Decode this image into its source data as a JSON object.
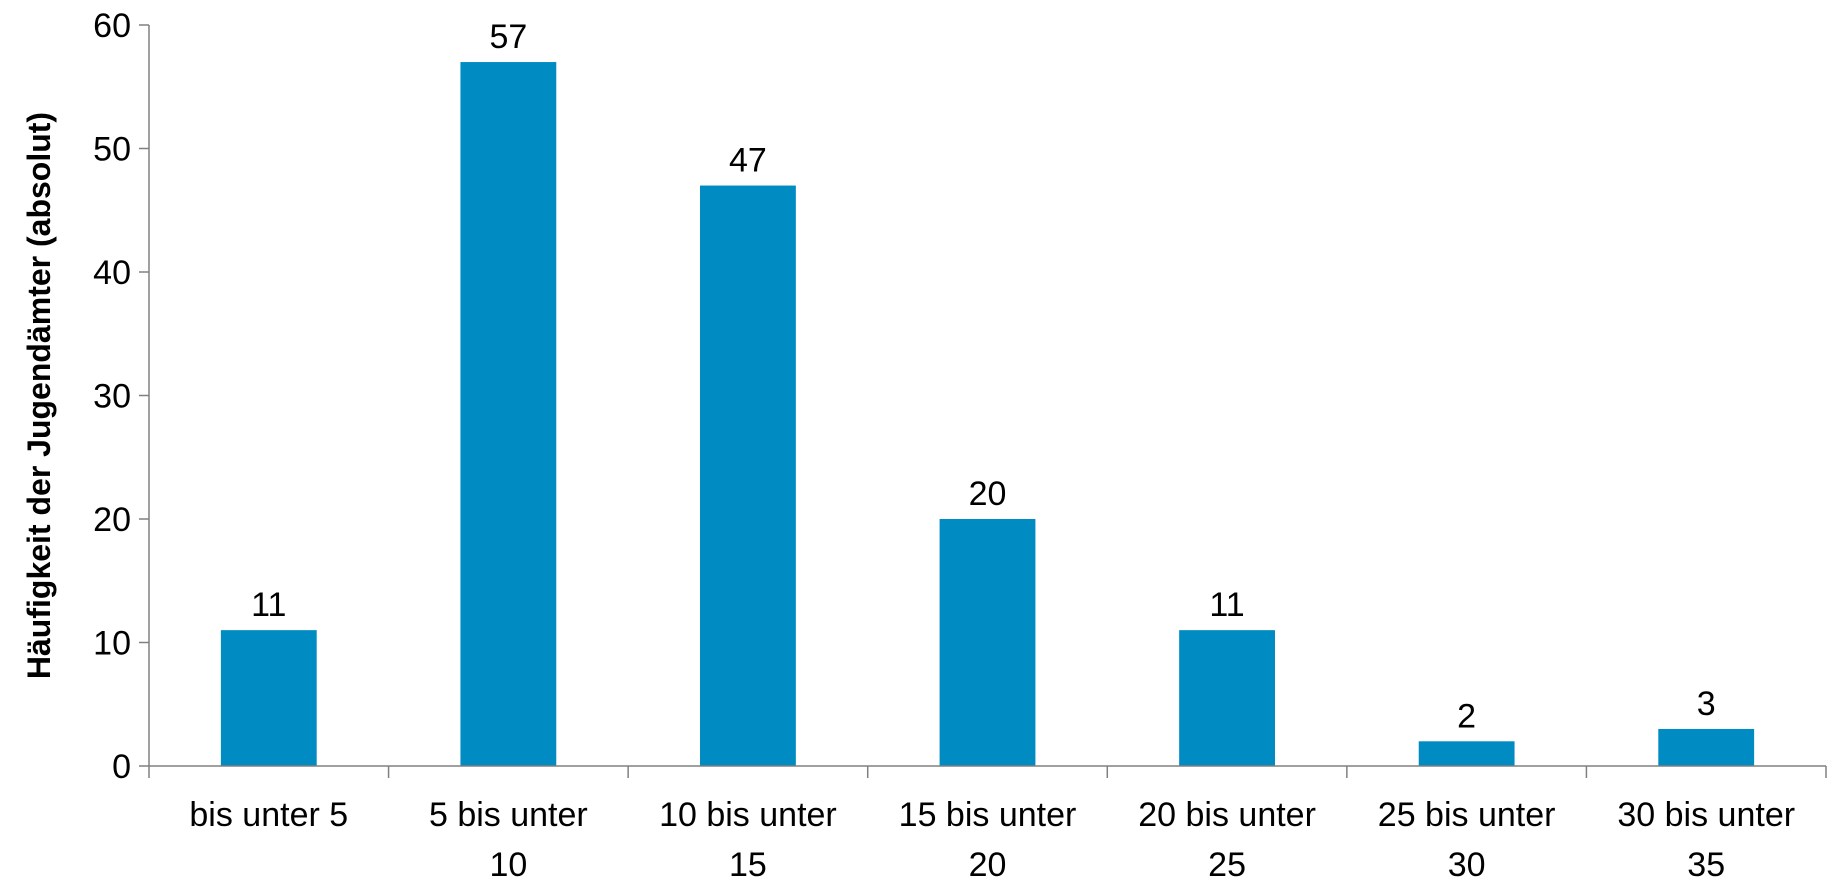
{
  "chart_data": {
    "type": "bar",
    "title": "",
    "xlabel": "",
    "ylabel": "Häufigkeit der Jugendämter (absolut)",
    "ylim": [
      0,
      60
    ],
    "yticks": [
      0,
      10,
      20,
      30,
      40,
      50,
      60
    ],
    "categories": [
      [
        "bis unter 5"
      ],
      [
        "5 bis unter",
        "10"
      ],
      [
        "10 bis unter",
        "15"
      ],
      [
        "15 bis unter",
        "20"
      ],
      [
        "20 bis unter",
        "25"
      ],
      [
        "25 bis unter",
        "30"
      ],
      [
        "30 bis unter",
        "35"
      ]
    ],
    "values": [
      11,
      57,
      47,
      20,
      11,
      2,
      3
    ],
    "data_labels": [
      "11",
      "57",
      "47",
      "20",
      "11",
      "2",
      "3"
    ],
    "grid": false,
    "legend": "none",
    "colors": {
      "bar": "#008bc2",
      "axis": "#808080"
    }
  }
}
